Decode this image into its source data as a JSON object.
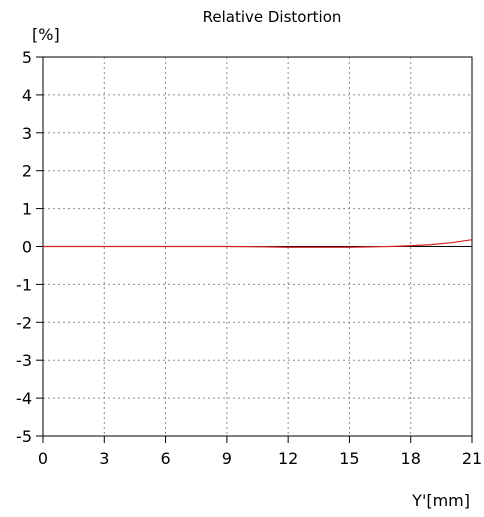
{
  "chart_data": {
    "type": "line",
    "title": "Relative Distortion",
    "ylabel": "[%]",
    "xlabel": "Y'[mm]",
    "xlim": [
      0,
      21
    ],
    "ylim": [
      -5,
      5
    ],
    "xticks": [
      0,
      3,
      6,
      9,
      12,
      15,
      18,
      21
    ],
    "yticks": [
      5,
      4,
      3,
      2,
      1,
      0,
      -1,
      -2,
      -3,
      -4,
      -5
    ],
    "xtick_labels": [
      "0",
      "3",
      "6",
      "9",
      "12",
      "15",
      "18",
      "21"
    ],
    "ytick_labels": [
      "5",
      "4",
      "3",
      "2",
      "1",
      "0",
      "-1",
      "-2",
      "-3",
      "-4",
      "-5"
    ],
    "grid": true,
    "series": [
      {
        "color": "#d62020",
        "x": [
          0,
          3,
          6,
          9,
          11,
          12,
          13,
          14,
          15,
          16,
          17,
          18,
          19,
          20,
          21
        ],
        "y": [
          0,
          0,
          0,
          0,
          -0.01,
          -0.02,
          -0.02,
          -0.02,
          -0.02,
          -0.01,
          0.0,
          0.02,
          0.05,
          0.1,
          0.18
        ]
      }
    ]
  }
}
